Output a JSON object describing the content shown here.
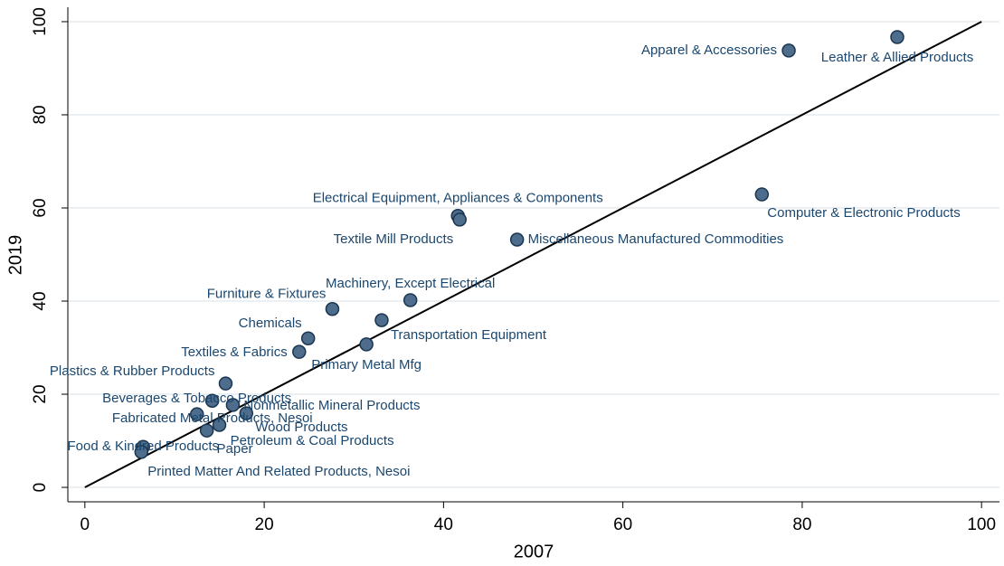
{
  "chart_data": {
    "type": "scatter",
    "x_label": "2007",
    "y_label": "2019",
    "labels": [
      "Leather & Allied Products",
      "Apparel & Accessories",
      "Computer & Electronic Products",
      "Electrical Equipment, Appliances & Components",
      "Textile Mill Products",
      "Miscellaneous Manufactured Commodities",
      "Machinery, Except Electrical",
      "Furniture & Fixtures",
      "Transportation Equipment",
      "Chemicals",
      "Primary Metal Mfg",
      "Textiles & Fabrics",
      "Plastics & Rubber Products",
      "Beverages & Tobacco Products",
      "Nonmetallic Mineral Products",
      "Fabricated Metal Products, Nesoi",
      "Wood Products",
      "Paper",
      "Petroleum & Coal Products",
      "Food & Kindred Products",
      "Printed Matter And Related Products, Nesoi"
    ],
    "x": [
      90.6,
      78.5,
      75.5,
      41.6,
      41.8,
      48.2,
      36.3,
      27.6,
      33.1,
      24.9,
      31.4,
      23.9,
      15.7,
      14.2,
      16.5,
      12.5,
      18.0,
      15.0,
      13.6,
      6.5,
      6.3
    ],
    "values": [
      96.7,
      93.8,
      62.9,
      58.3,
      57.5,
      53.2,
      40.2,
      38.3,
      35.9,
      32.0,
      30.7,
      29.1,
      22.3,
      18.6,
      17.7,
      15.7,
      15.9,
      13.4,
      12.2,
      8.7,
      7.6
    ],
    "color": "#4e6d8c",
    "xlim": [
      -1.9,
      102.0
    ],
    "ylim": [
      -3.1,
      103.1
    ],
    "xticks": [
      0,
      20,
      40,
      60,
      80,
      100
    ],
    "yticks": [
      0,
      20,
      40,
      60,
      80,
      100
    ],
    "grid": true,
    "reference_line": "y=x"
  }
}
